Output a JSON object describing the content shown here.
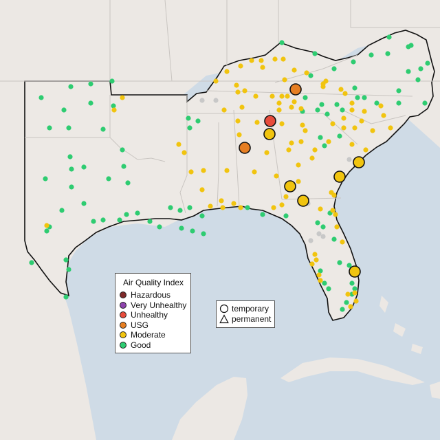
{
  "legend": {
    "title": "Air Quality Index",
    "categories": [
      {
        "label": "Hazardous",
        "color": "#7e2a2a"
      },
      {
        "label": "Very Unhealthy",
        "color": "#8e44ad"
      },
      {
        "label": "Unhealthy",
        "color": "#e74c3c"
      },
      {
        "label": "USG",
        "color": "#e67e22"
      },
      {
        "label": "Moderate",
        "color": "#f1c40f"
      },
      {
        "label": "Good",
        "color": "#2ecc71"
      }
    ]
  },
  "monitor_type_legend": {
    "items": [
      {
        "label": "temporary",
        "shape": "circle-icon"
      },
      {
        "label": "permanent",
        "shape": "triangle-icon"
      }
    ]
  },
  "colors": {
    "water": "#cfdbe6",
    "land": "#ece8e4",
    "outline": "#111111",
    "state_line": "#cccccc"
  }
}
